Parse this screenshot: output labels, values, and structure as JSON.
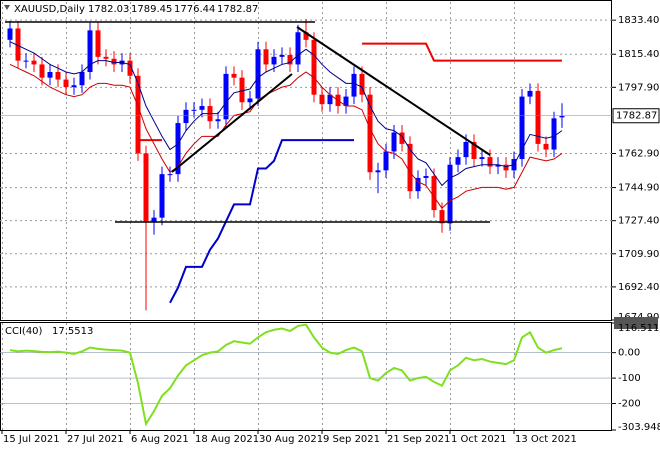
{
  "chart_data": [
    {
      "type": "candlestick",
      "title": "XAUUSD,Daily",
      "categories": [
        "15 Jul 2021",
        null,
        null,
        null,
        null,
        null,
        null,
        null,
        "27 Jul 2021",
        null,
        null,
        null,
        null,
        null,
        null,
        null,
        "6 Aug 2021",
        null,
        null,
        null,
        null,
        null,
        null,
        null,
        "18 Aug 2021",
        null,
        null,
        null,
        null,
        null,
        null,
        null,
        "30 Aug 2021",
        null,
        null,
        null,
        null,
        null,
        null,
        null,
        "9 Sep 2021",
        null,
        null,
        null,
        null,
        null,
        null,
        null,
        "21 Sep 2021",
        null,
        null,
        null,
        null,
        null,
        null,
        null,
        "1 Oct 2021",
        null,
        null,
        null,
        null,
        null,
        null,
        null,
        "13 Oct 2021",
        null,
        null,
        null,
        null,
        null
      ],
      "open": [
        1823,
        1829,
        1812,
        1812,
        1810,
        1803,
        1806,
        1802,
        1798,
        1799,
        1806,
        1828,
        1814,
        1813,
        1810,
        1812,
        1804,
        1763,
        1727,
        1729,
        1752,
        1752,
        1779,
        1786,
        1786,
        1788,
        1780,
        1781,
        1805,
        1803,
        1790,
        1792,
        1818,
        1810,
        1814,
        1815,
        1810,
        1827,
        1823,
        1794,
        1789,
        1794,
        1788,
        1793,
        1805,
        1794,
        1753,
        1754,
        1764,
        1774,
        1768,
        1743,
        1750,
        1751,
        1733,
        1726,
        1757,
        1761,
        1769,
        1760,
        1761,
        1756,
        1757,
        1754,
        1760,
        1793,
        1796,
        1768,
        1765,
        1782.03
      ],
      "high": [
        1833,
        1833,
        1816,
        1816,
        1814,
        1810,
        1810,
        1806,
        1803,
        1810,
        1832,
        1832,
        1818,
        1817,
        1816,
        1816,
        1808,
        1767,
        1733,
        1756,
        1756,
        1783,
        1790,
        1790,
        1792,
        1792,
        1785,
        1809,
        1809,
        1807,
        1796,
        1822,
        1822,
        1818,
        1819,
        1819,
        1831,
        1834,
        1827,
        1798,
        1798,
        1798,
        1797,
        1809,
        1809,
        1798,
        1758,
        1768,
        1778,
        1778,
        1772,
        1754,
        1755,
        1755,
        1737,
        1761,
        1765,
        1773,
        1773,
        1765,
        1765,
        1761,
        1761,
        1764,
        1797,
        1800,
        1800,
        1772,
        1785,
        1789.45
      ],
      "low": [
        1819,
        1808,
        1808,
        1806,
        1799,
        1799,
        1798,
        1794,
        1794,
        1795,
        1802,
        1810,
        1809,
        1806,
        1806,
        1800,
        1759,
        1680,
        1720,
        1725,
        1748,
        1748,
        1775,
        1782,
        1782,
        1776,
        1776,
        1777,
        1799,
        1786,
        1786,
        1788,
        1806,
        1806,
        1810,
        1806,
        1806,
        1819,
        1790,
        1785,
        1785,
        1784,
        1784,
        1789,
        1790,
        1749,
        1742,
        1750,
        1760,
        1764,
        1739,
        1739,
        1746,
        1729,
        1721,
        1722,
        1753,
        1757,
        1756,
        1756,
        1752,
        1752,
        1750,
        1750,
        1756,
        1789,
        1764,
        1761,
        1761,
        1776.44
      ],
      "close": [
        1829,
        1812,
        1812,
        1810,
        1803,
        1806,
        1802,
        1798,
        1799,
        1806,
        1828,
        1814,
        1813,
        1810,
        1812,
        1804,
        1763,
        1727,
        1729,
        1752,
        1752,
        1779,
        1786,
        1786,
        1788,
        1780,
        1781,
        1805,
        1803,
        1790,
        1792,
        1818,
        1810,
        1814,
        1815,
        1810,
        1827,
        1823,
        1794,
        1789,
        1794,
        1788,
        1793,
        1805,
        1794,
        1753,
        1754,
        1764,
        1774,
        1768,
        1743,
        1750,
        1751,
        1733,
        1726,
        1757,
        1761,
        1769,
        1760,
        1761,
        1756,
        1757,
        1754,
        1760,
        1793,
        1796,
        1768,
        1765,
        1781.5,
        1782.87
      ],
      "up_color": "#0000ff",
      "down_color": "#ff0000",
      "lines": [
        {
          "color": "#00008b",
          "values": [
            1822,
            1820,
            1818,
            1816,
            1813,
            1810,
            1808,
            1806,
            1805,
            1806,
            1810,
            1812,
            1812,
            1811,
            1811,
            1810,
            1800,
            1788,
            1780,
            1772,
            1765,
            1768,
            1775,
            1780,
            1784,
            1784,
            1784,
            1790,
            1795,
            1796,
            1797,
            1803,
            1806,
            1808,
            1810,
            1811,
            1815,
            1818,
            1815,
            1810,
            1806,
            1803,
            1800,
            1800,
            1798,
            1788,
            1780,
            1776,
            1775,
            1772,
            1765,
            1760,
            1758,
            1752,
            1746,
            1750,
            1752,
            1755,
            1756,
            1757,
            1757,
            1757,
            1756,
            1757,
            1765,
            1773,
            1772,
            1771,
            1772,
            1775
          ]
        },
        {
          "color": "#cc0000",
          "values": [
            1810,
            1808,
            1806,
            1804,
            1801,
            1798,
            1796,
            1794,
            1793,
            1794,
            1798,
            1800,
            1800,
            1799,
            1799,
            1798,
            1788,
            1776,
            1768,
            1760,
            1753,
            1756,
            1763,
            1768,
            1772,
            1772,
            1772,
            1778,
            1783,
            1784,
            1785,
            1791,
            1794,
            1796,
            1798,
            1799,
            1803,
            1806,
            1803,
            1798,
            1794,
            1791,
            1788,
            1788,
            1786,
            1776,
            1768,
            1764,
            1763,
            1760,
            1753,
            1748,
            1746,
            1740,
            1734,
            1738,
            1740,
            1743,
            1744,
            1745,
            1745,
            1745,
            1744,
            1745,
            1753,
            1761,
            1760,
            1759,
            1760,
            1763
          ]
        },
        {
          "color": "#0000cc",
          "width": 2,
          "values": [
            null,
            null,
            null,
            null,
            null,
            null,
            null,
            null,
            null,
            null,
            null,
            null,
            null,
            null,
            null,
            null,
            null,
            null,
            null,
            null,
            1684,
            1692,
            1703,
            1703,
            1703,
            1712,
            1718,
            1727,
            1736,
            1736,
            1736,
            1755,
            1755,
            1759,
            1770,
            1770,
            1770,
            1770,
            1770,
            1770,
            1770,
            1770,
            1770,
            1770,
            null,
            null,
            null,
            null,
            null,
            null,
            null,
            null,
            null,
            null,
            null,
            null,
            null,
            null,
            null,
            null,
            null,
            null,
            null,
            null,
            null,
            null,
            null,
            null,
            null,
            null
          ]
        },
        {
          "color": "#ee0000",
          "width": 2,
          "values": [
            null,
            null,
            null,
            null,
            null,
            null,
            null,
            null,
            null,
            null,
            null,
            null,
            null,
            null,
            null,
            null,
            1770,
            1770,
            1770,
            1770,
            null,
            null,
            null,
            null,
            null,
            null,
            null,
            null,
            null,
            null,
            null,
            null,
            null,
            null,
            null,
            null,
            null,
            null,
            null,
            null,
            null,
            null,
            null,
            null,
            1821,
            1821,
            1821,
            1821,
            1821,
            1821,
            1821,
            1821,
            1821,
            1812,
            1812,
            1812,
            1812,
            1812,
            1812,
            1812,
            1812,
            1812,
            1812,
            1812,
            1812,
            1812,
            1812,
            1812,
            1812,
            1812
          ]
        }
      ],
      "ylim": [
        1674.9,
        1843
      ],
      "yticks": [
        {
          "value": 1833.4,
          "label": "1833.40"
        },
        {
          "value": 1815.4,
          "label": "1815.40"
        },
        {
          "value": 1797.9,
          "label": "1797.90"
        },
        {
          "value": 1762.9,
          "label": "1762.90"
        },
        {
          "value": 1744.9,
          "label": "1744.90"
        },
        {
          "value": 1727.4,
          "label": "1727.40"
        },
        {
          "value": 1709.9,
          "label": "1709.90"
        },
        {
          "value": 1692.4,
          "label": "1692.40"
        },
        {
          "value": 1674.9,
          "label": "1674.90"
        }
      ],
      "grid": true
    },
    {
      "type": "line",
      "title": "CCI(40)",
      "values": [
        10,
        5,
        8,
        6,
        3,
        2,
        4,
        0,
        -5,
        5,
        20,
        15,
        12,
        10,
        8,
        0,
        -120,
        -280,
        -230,
        -170,
        -140,
        -90,
        -50,
        -30,
        -10,
        0,
        5,
        30,
        45,
        40,
        35,
        60,
        80,
        90,
        95,
        85,
        105,
        110,
        60,
        20,
        0,
        -5,
        10,
        20,
        5,
        -100,
        -110,
        -80,
        -60,
        -70,
        -110,
        -100,
        -95,
        -115,
        -130,
        -70,
        -50,
        -20,
        -30,
        -25,
        -35,
        -40,
        -45,
        -30,
        60,
        80,
        20,
        0,
        10,
        17.5513
      ],
      "color": "#7fe01f",
      "ylim": [
        -303.9481,
        116.5118
      ],
      "yticks": [
        116.5118,
        {
          "value": 0,
          "label": "0.00"
        },
        -100,
        -200,
        -303.9481
      ],
      "grid": true
    }
  ]
}
